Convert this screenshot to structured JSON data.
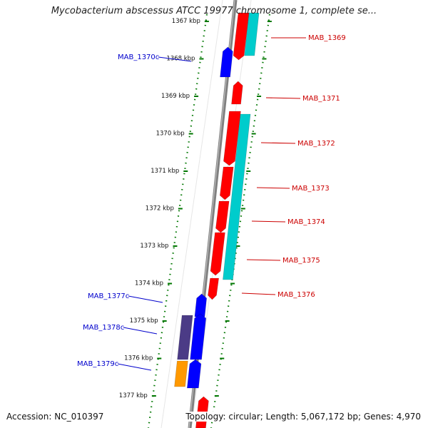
{
  "title": "Mycobacterium abscessus ATCC 19977 chromosome 1, complete se...",
  "accession": "Accession: NC_010397",
  "summary": "Topology: circular; Length: 5,067,172 bp; Genes: 4,970",
  "colors": {
    "forward_gene": "#ff0000",
    "reverse_gene": "#0000ff",
    "cds_feature": "#00cccc",
    "dark_feature": "#4b3b86",
    "orange_feature": "#ff9900",
    "backbone": "#808080",
    "kbp_tick": "#007700",
    "forward_label": "#cc0000",
    "reverse_label": "#0000cc"
  },
  "kbp_ticks": [
    "1367 kbp",
    "1368 kbp",
    "1369 kbp",
    "1370 kbp",
    "1371 kbp",
    "1372 kbp",
    "1373 kbp",
    "1374 kbp",
    "1375 kbp",
    "1376 kbp",
    "1377 kbp"
  ],
  "forward_genes": [
    "MAB_1369",
    "MAB_1371",
    "MAB_1372",
    "MAB_1373",
    "MAB_1374",
    "MAB_1375",
    "MAB_1376"
  ],
  "reverse_genes": [
    "MAB_1370c",
    "MAB_1377c",
    "MAB_1378c",
    "MAB_1379c"
  ]
}
